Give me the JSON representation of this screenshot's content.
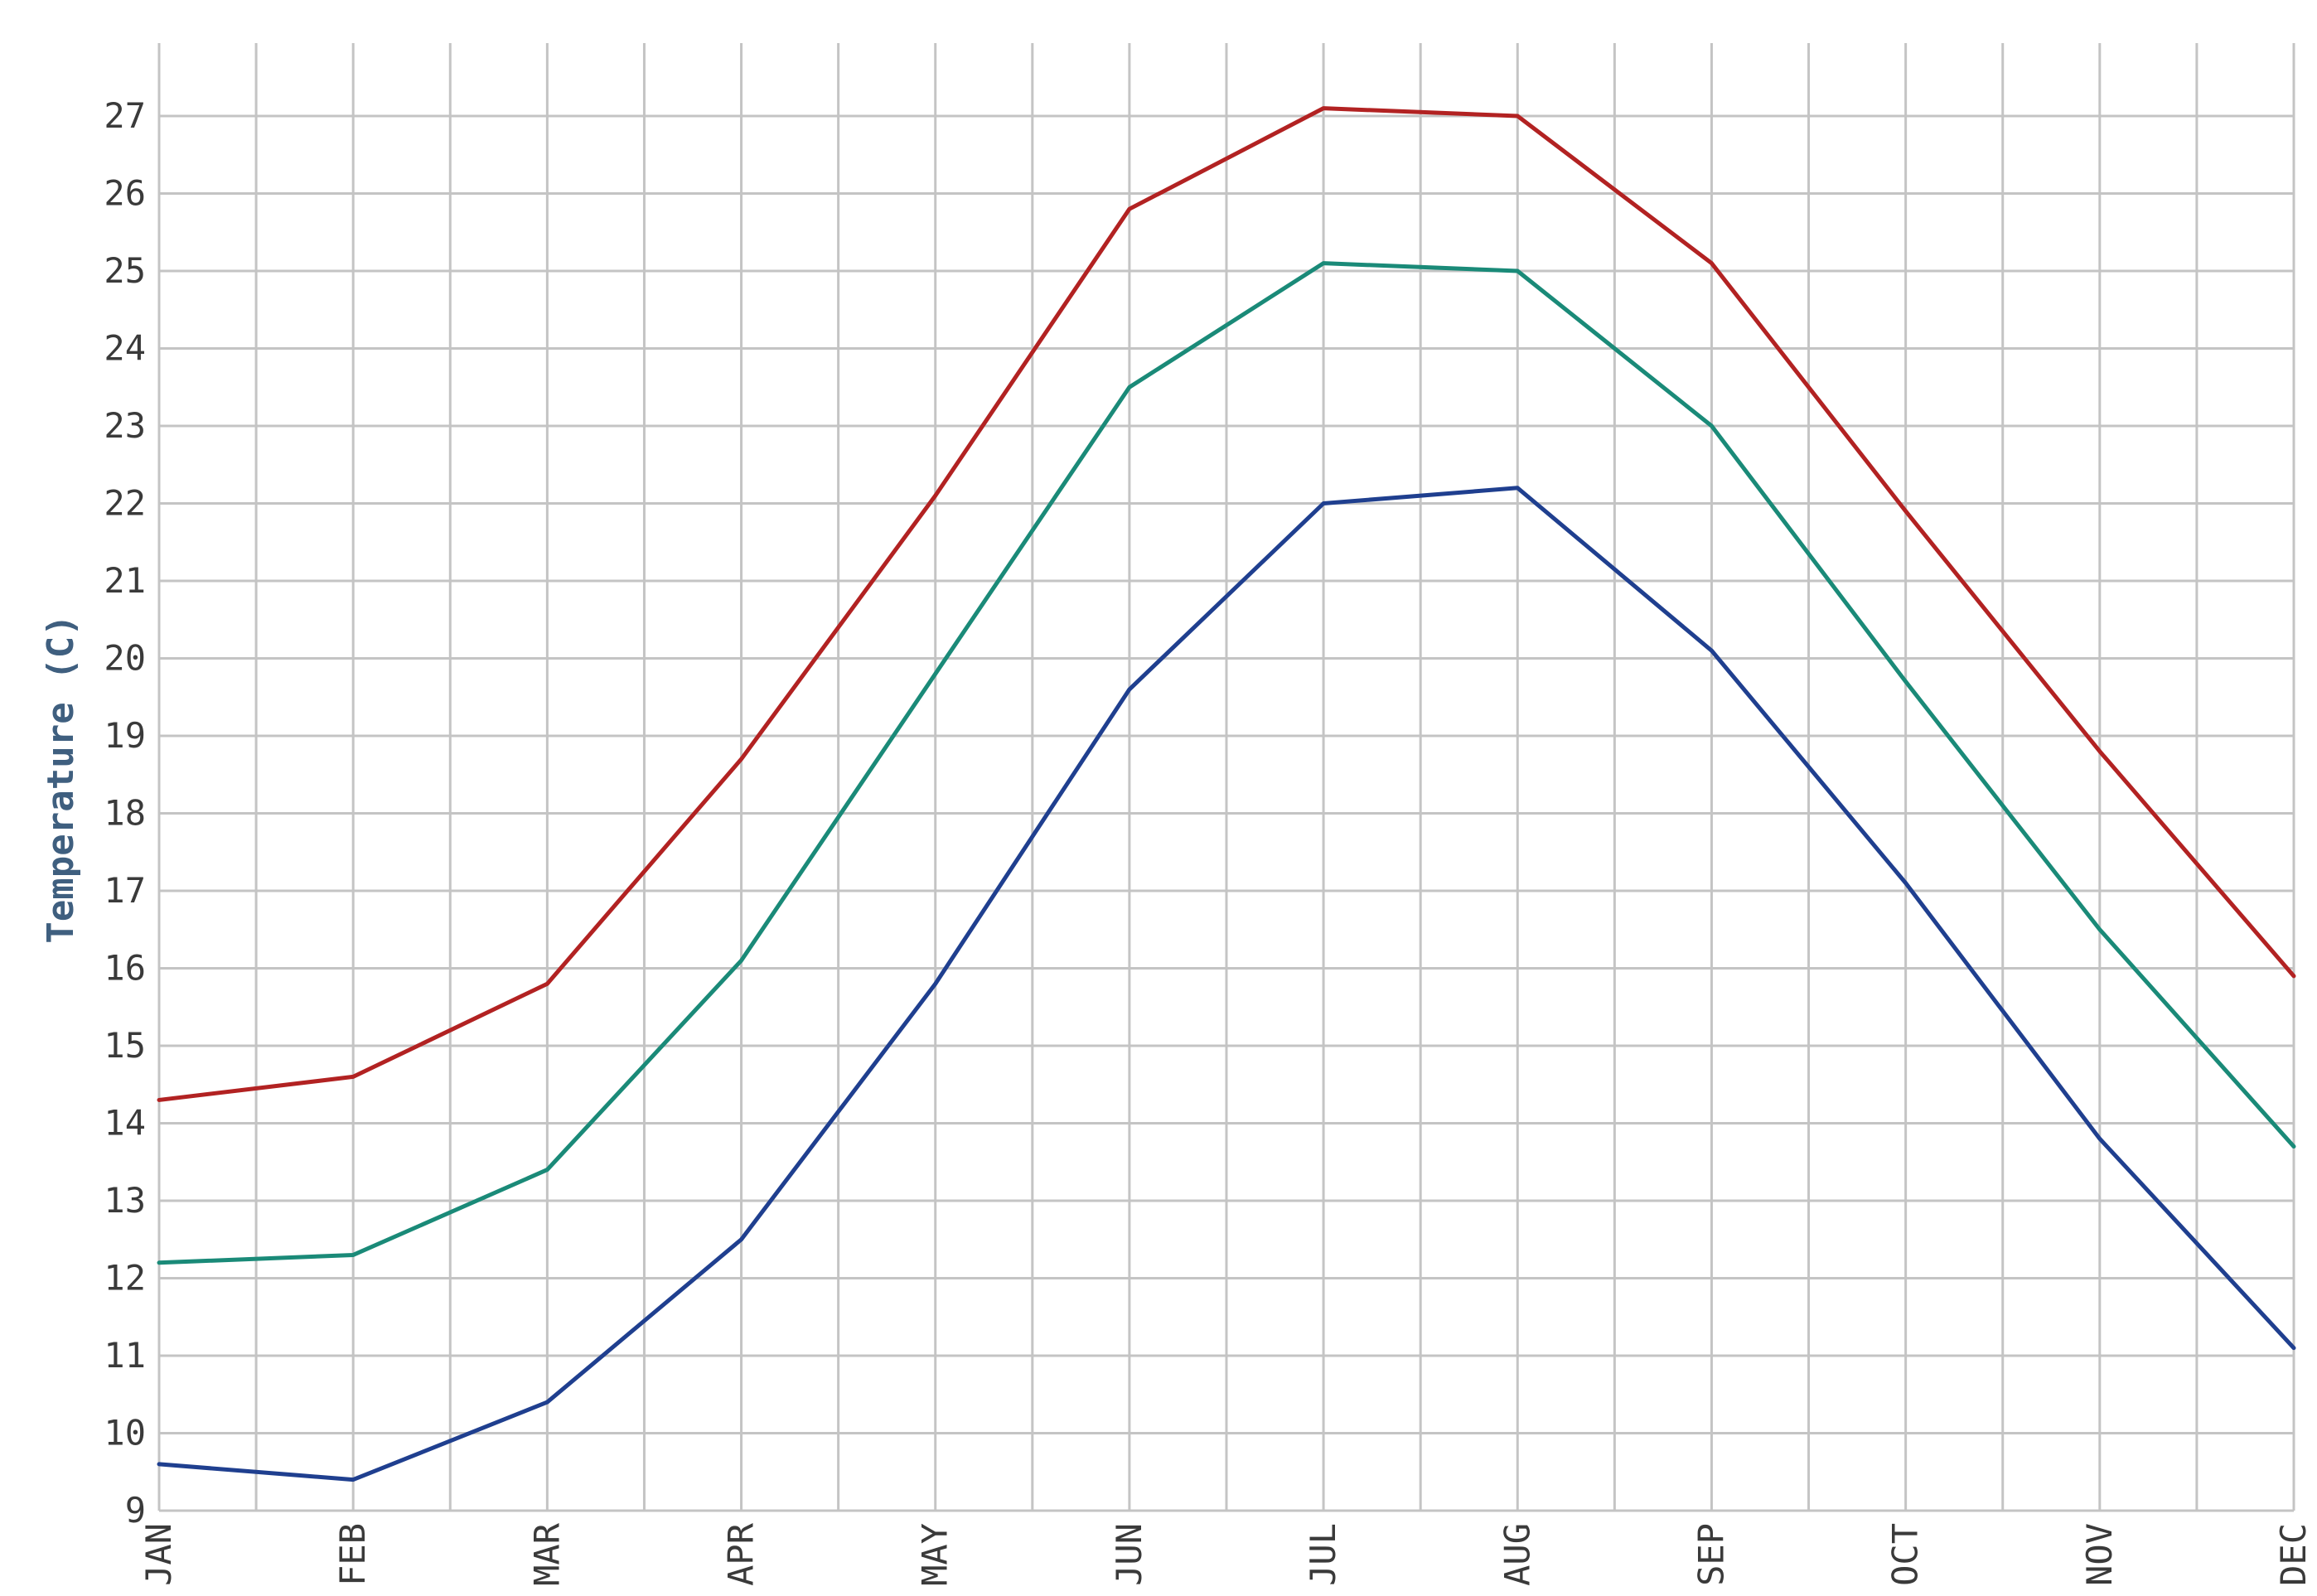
{
  "chart_data": {
    "type": "line",
    "ylabel": "Temperature (C)",
    "xlabel": "",
    "categories": [
      "JAN",
      "FEB",
      "MAR",
      "APR",
      "MAY",
      "JUN",
      "JUL",
      "AUG",
      "SEP",
      "OCT",
      "NOV",
      "DEC"
    ],
    "ylim": [
      9,
      27
    ],
    "yticks": [
      "9",
      "10",
      "11",
      "12",
      "13",
      "14",
      "15",
      "16",
      "17",
      "18",
      "19",
      "20",
      "21",
      "22",
      "23",
      "24",
      "25",
      "26",
      "27"
    ],
    "grid": true,
    "x_minor_grid": true,
    "series": [
      {
        "color": "#b22222",
        "values": [
          14.3,
          14.6,
          15.8,
          18.7,
          22.1,
          25.8,
          27.1,
          27.0,
          25.1,
          21.9,
          18.8,
          15.9
        ]
      },
      {
        "color": "#1a8a78",
        "values": [
          12.2,
          12.3,
          13.4,
          16.1,
          19.8,
          23.5,
          25.1,
          25.0,
          23.0,
          19.7,
          16.5,
          13.7
        ]
      },
      {
        "color": "#1f3f8f",
        "values": [
          9.6,
          9.4,
          10.4,
          12.5,
          15.8,
          19.6,
          22.0,
          22.2,
          20.1,
          17.1,
          13.8,
          11.1
        ]
      }
    ]
  }
}
